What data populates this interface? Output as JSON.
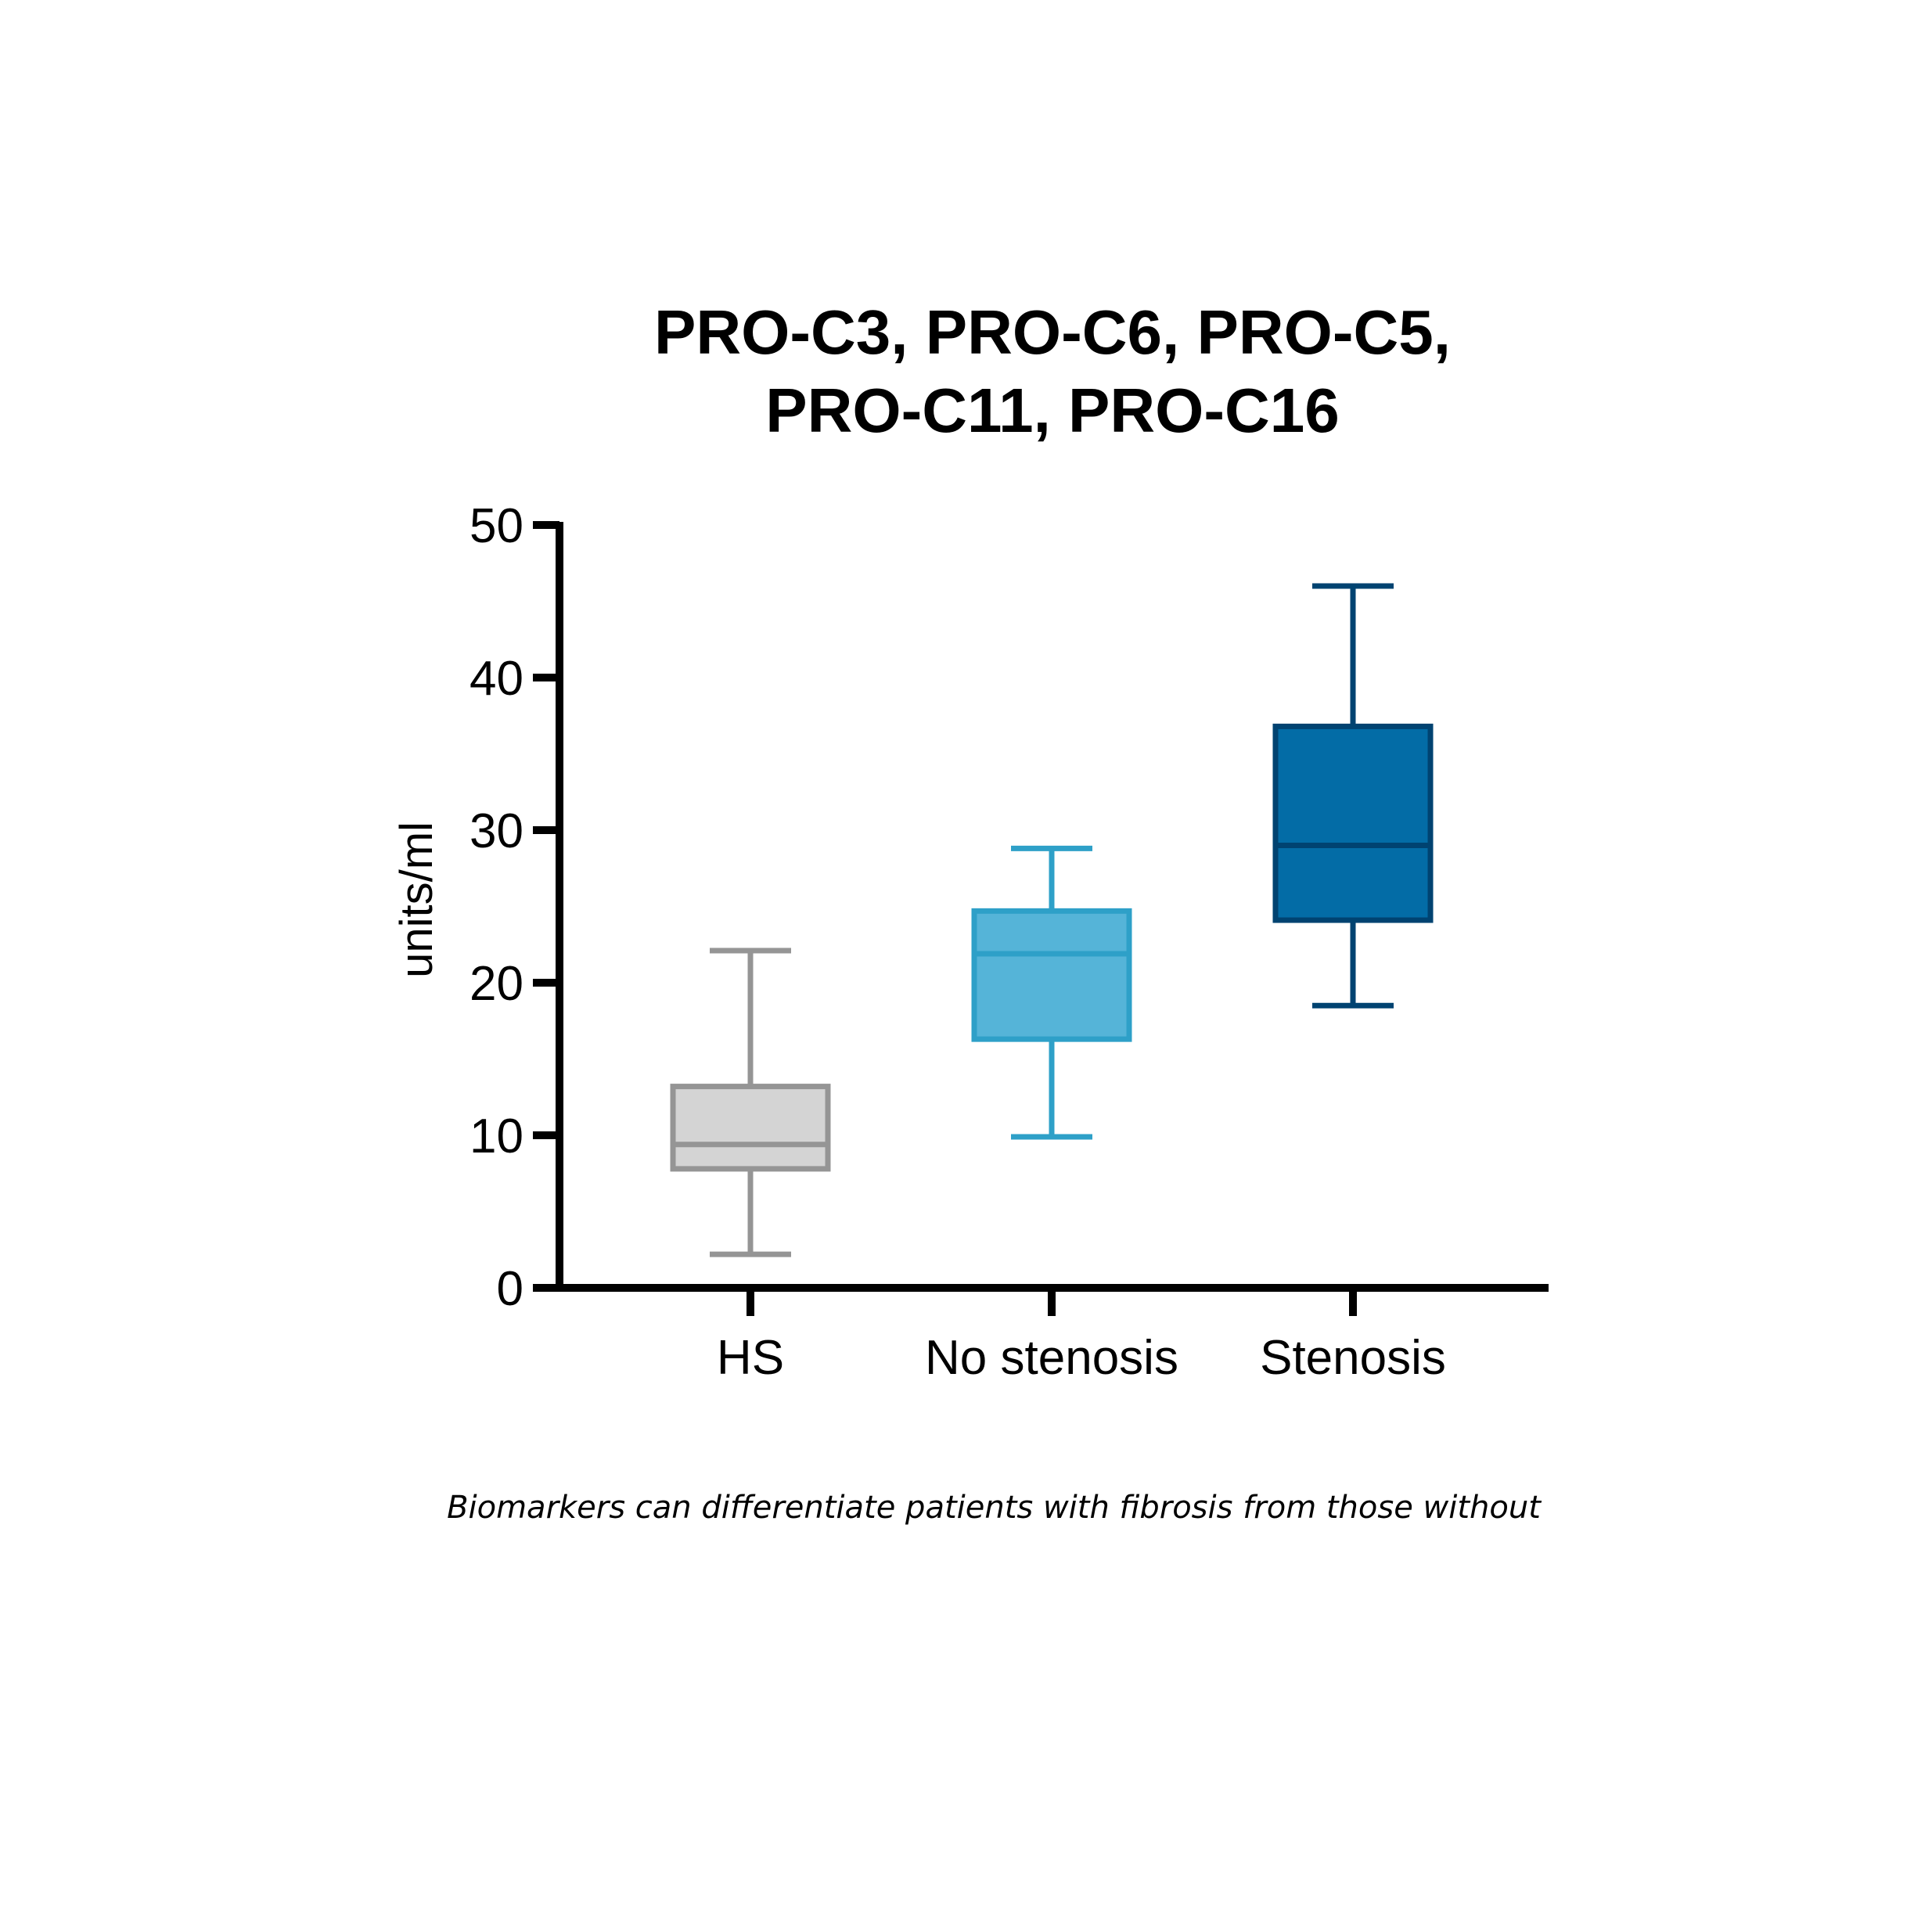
{
  "chart_data": {
    "type": "box",
    "title": [
      "PRO-C3, PRO-C6, PRO-C5,",
      "PRO-C11, PRO-C16"
    ],
    "xlabel": "",
    "ylabel": "units/ml",
    "ylim": [
      0,
      50
    ],
    "yticks": [
      "0",
      "10",
      "20",
      "30",
      "40",
      "50"
    ],
    "ytick_values": [
      0,
      10,
      20,
      30,
      40,
      50
    ],
    "grid": false,
    "categories": [
      "HS",
      "No stenosis",
      "Stenosis"
    ],
    "boxes": [
      {
        "name": "HS",
        "min": 2.2,
        "q1": 7.8,
        "median": 9.4,
        "q3": 13.2,
        "max": 22.1,
        "fill": "#d4d4d4",
        "stroke": "#959595"
      },
      {
        "name": "No stenosis",
        "min": 9.9,
        "q1": 16.3,
        "median": 21.9,
        "q3": 24.7,
        "max": 28.8,
        "fill": "#55b4d8",
        "stroke": "#2ea0c8"
      },
      {
        "name": "Stenosis",
        "min": 18.5,
        "q1": 24.1,
        "median": 29.0,
        "q3": 36.8,
        "max": 46.0,
        "fill": "#036ca6",
        "stroke": "#004371"
      }
    ]
  },
  "caption": "Biomarkers can differentiate patients with fibrosis from those without"
}
